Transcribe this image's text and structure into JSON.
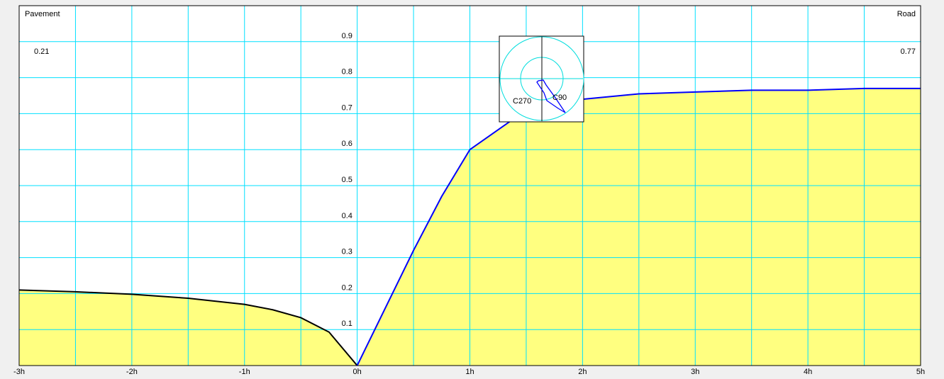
{
  "chart_data": {
    "type": "area",
    "corner_labels": {
      "left_title": "Pavement",
      "left_value": "0.21",
      "right_title": "Road",
      "right_value": "0.77"
    },
    "x_ticks": [
      {
        "value": -3,
        "label": "-3h"
      },
      {
        "value": -2,
        "label": "-2h"
      },
      {
        "value": -1,
        "label": "-1h"
      },
      {
        "value": 0,
        "label": "0h"
      },
      {
        "value": 1,
        "label": "1h"
      },
      {
        "value": 2,
        "label": "2h"
      },
      {
        "value": 3,
        "label": "3h"
      },
      {
        "value": 4,
        "label": "4h"
      },
      {
        "value": 5,
        "label": "5h"
      }
    ],
    "y_ticks": [
      {
        "value": 0.1,
        "label": "0.1"
      },
      {
        "value": 0.2,
        "label": "0.2"
      },
      {
        "value": 0.3,
        "label": "0.3"
      },
      {
        "value": 0.4,
        "label": "0.4"
      },
      {
        "value": 0.5,
        "label": "0.5"
      },
      {
        "value": 0.6,
        "label": "0.6"
      },
      {
        "value": 0.7,
        "label": "0.7"
      },
      {
        "value": 0.8,
        "label": "0.8"
      },
      {
        "value": 0.9,
        "label": "0.9"
      }
    ],
    "xlim": [
      -3,
      5
    ],
    "ylim": [
      0,
      1.0
    ],
    "grid": true,
    "series": [
      {
        "color": "#000000",
        "fill": "#ffff80",
        "x": [
          -3,
          -2.5,
          -2,
          -1.5,
          -1,
          -0.75,
          -0.5,
          -0.25,
          0
        ],
        "y": [
          0.21,
          0.205,
          0.198,
          0.187,
          0.17,
          0.155,
          0.133,
          0.093,
          0
        ]
      },
      {
        "color": "#0000ff",
        "fill": "#ffff80",
        "x": [
          0,
          0.25,
          0.5,
          0.75,
          1,
          1.5,
          2,
          2.5,
          3,
          3.5,
          4,
          4.5,
          5
        ],
        "y": [
          0,
          0.16,
          0.32,
          0.47,
          0.6,
          0.71,
          0.74,
          0.755,
          0.76,
          0.765,
          0.765,
          0.77,
          0.77
        ]
      }
    ],
    "inset": {
      "labels": {
        "left": "C270",
        "right": "C90"
      },
      "ring_color": "#00dddd",
      "shape_color": "#0000ff"
    }
  }
}
